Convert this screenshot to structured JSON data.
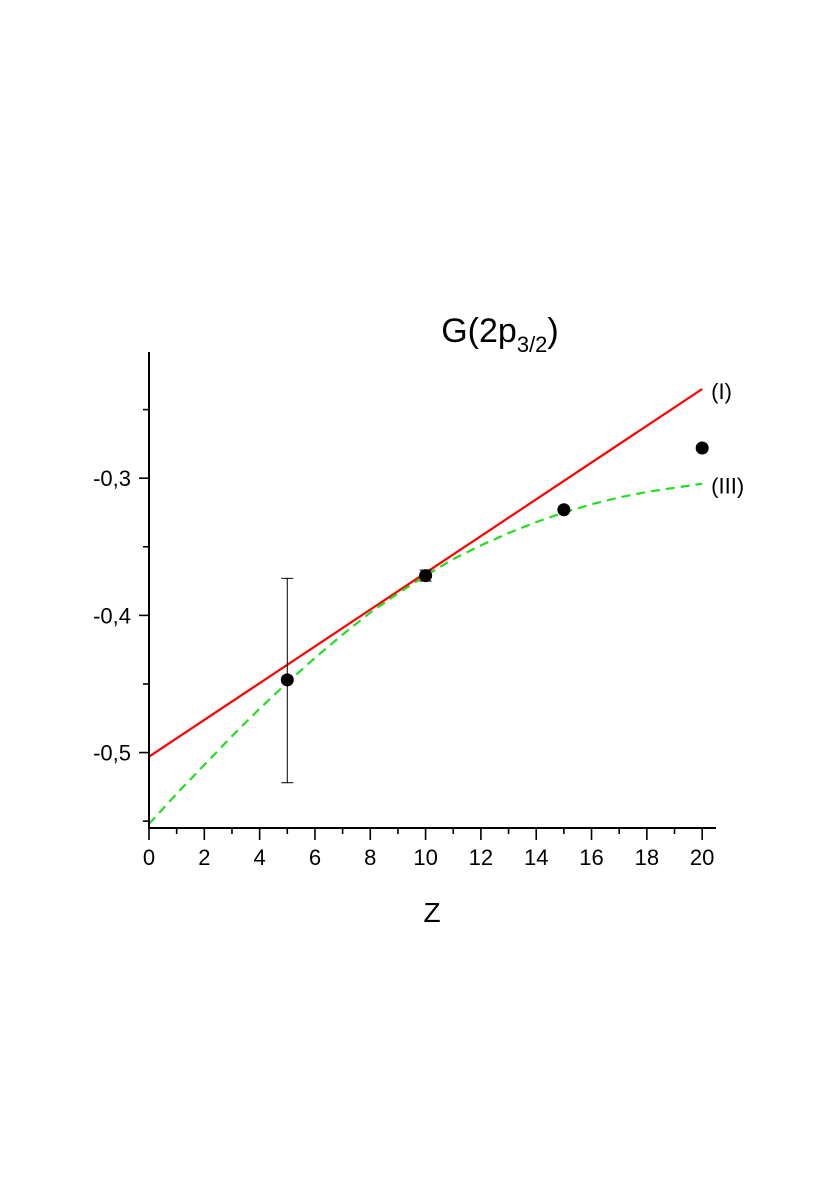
{
  "chart_data": {
    "type": "scatter",
    "title": "G(2p",
    "title_subscript": "3/2",
    "title_suffix": ")",
    "xlabel": "Z",
    "ylabel": "",
    "xlim": [
      0,
      20.5
    ],
    "ylim": [
      -0.555,
      -0.208
    ],
    "x_ticks": [
      0,
      2,
      4,
      6,
      8,
      10,
      12,
      14,
      16,
      18,
      20
    ],
    "x_tick_labels": [
      "0",
      "2",
      "4",
      "6",
      "8",
      "10",
      "12",
      "14",
      "16",
      "18",
      "20"
    ],
    "y_ticks": [
      -0.3,
      -0.4,
      -0.5
    ],
    "y_tick_labels": [
      "-0,3",
      "-0,4",
      "-0,5"
    ],
    "grid": false,
    "series": [
      {
        "name": "(I)",
        "kind": "line",
        "color": "#ff0000",
        "x": [
          0,
          20
        ],
        "y": [
          -0.503,
          -0.235
        ]
      },
      {
        "name": "(III)",
        "kind": "dashed-line",
        "color": "#22dd22",
        "x": [
          0,
          1,
          2,
          3,
          4,
          5,
          6,
          7,
          8,
          9,
          10,
          11,
          12,
          13,
          14,
          15,
          16,
          17,
          18,
          19,
          20
        ],
        "y": [
          -0.552,
          -0.53,
          -0.509,
          -0.488,
          -0.468,
          -0.449,
          -0.431,
          -0.414,
          -0.398,
          -0.384,
          -0.371,
          -0.359,
          -0.349,
          -0.34,
          -0.332,
          -0.325,
          -0.319,
          -0.314,
          -0.31,
          -0.307,
          -0.304
        ]
      },
      {
        "name": "",
        "kind": "points",
        "color": "#000000",
        "x": [
          5,
          10,
          15,
          20
        ],
        "y": [
          -0.447,
          -0.371,
          -0.323,
          -0.278
        ],
        "error_low": [
          -0.522,
          -0.375,
          null,
          null
        ],
        "error_high": [
          -0.373,
          -0.367,
          null,
          null
        ]
      }
    ]
  }
}
